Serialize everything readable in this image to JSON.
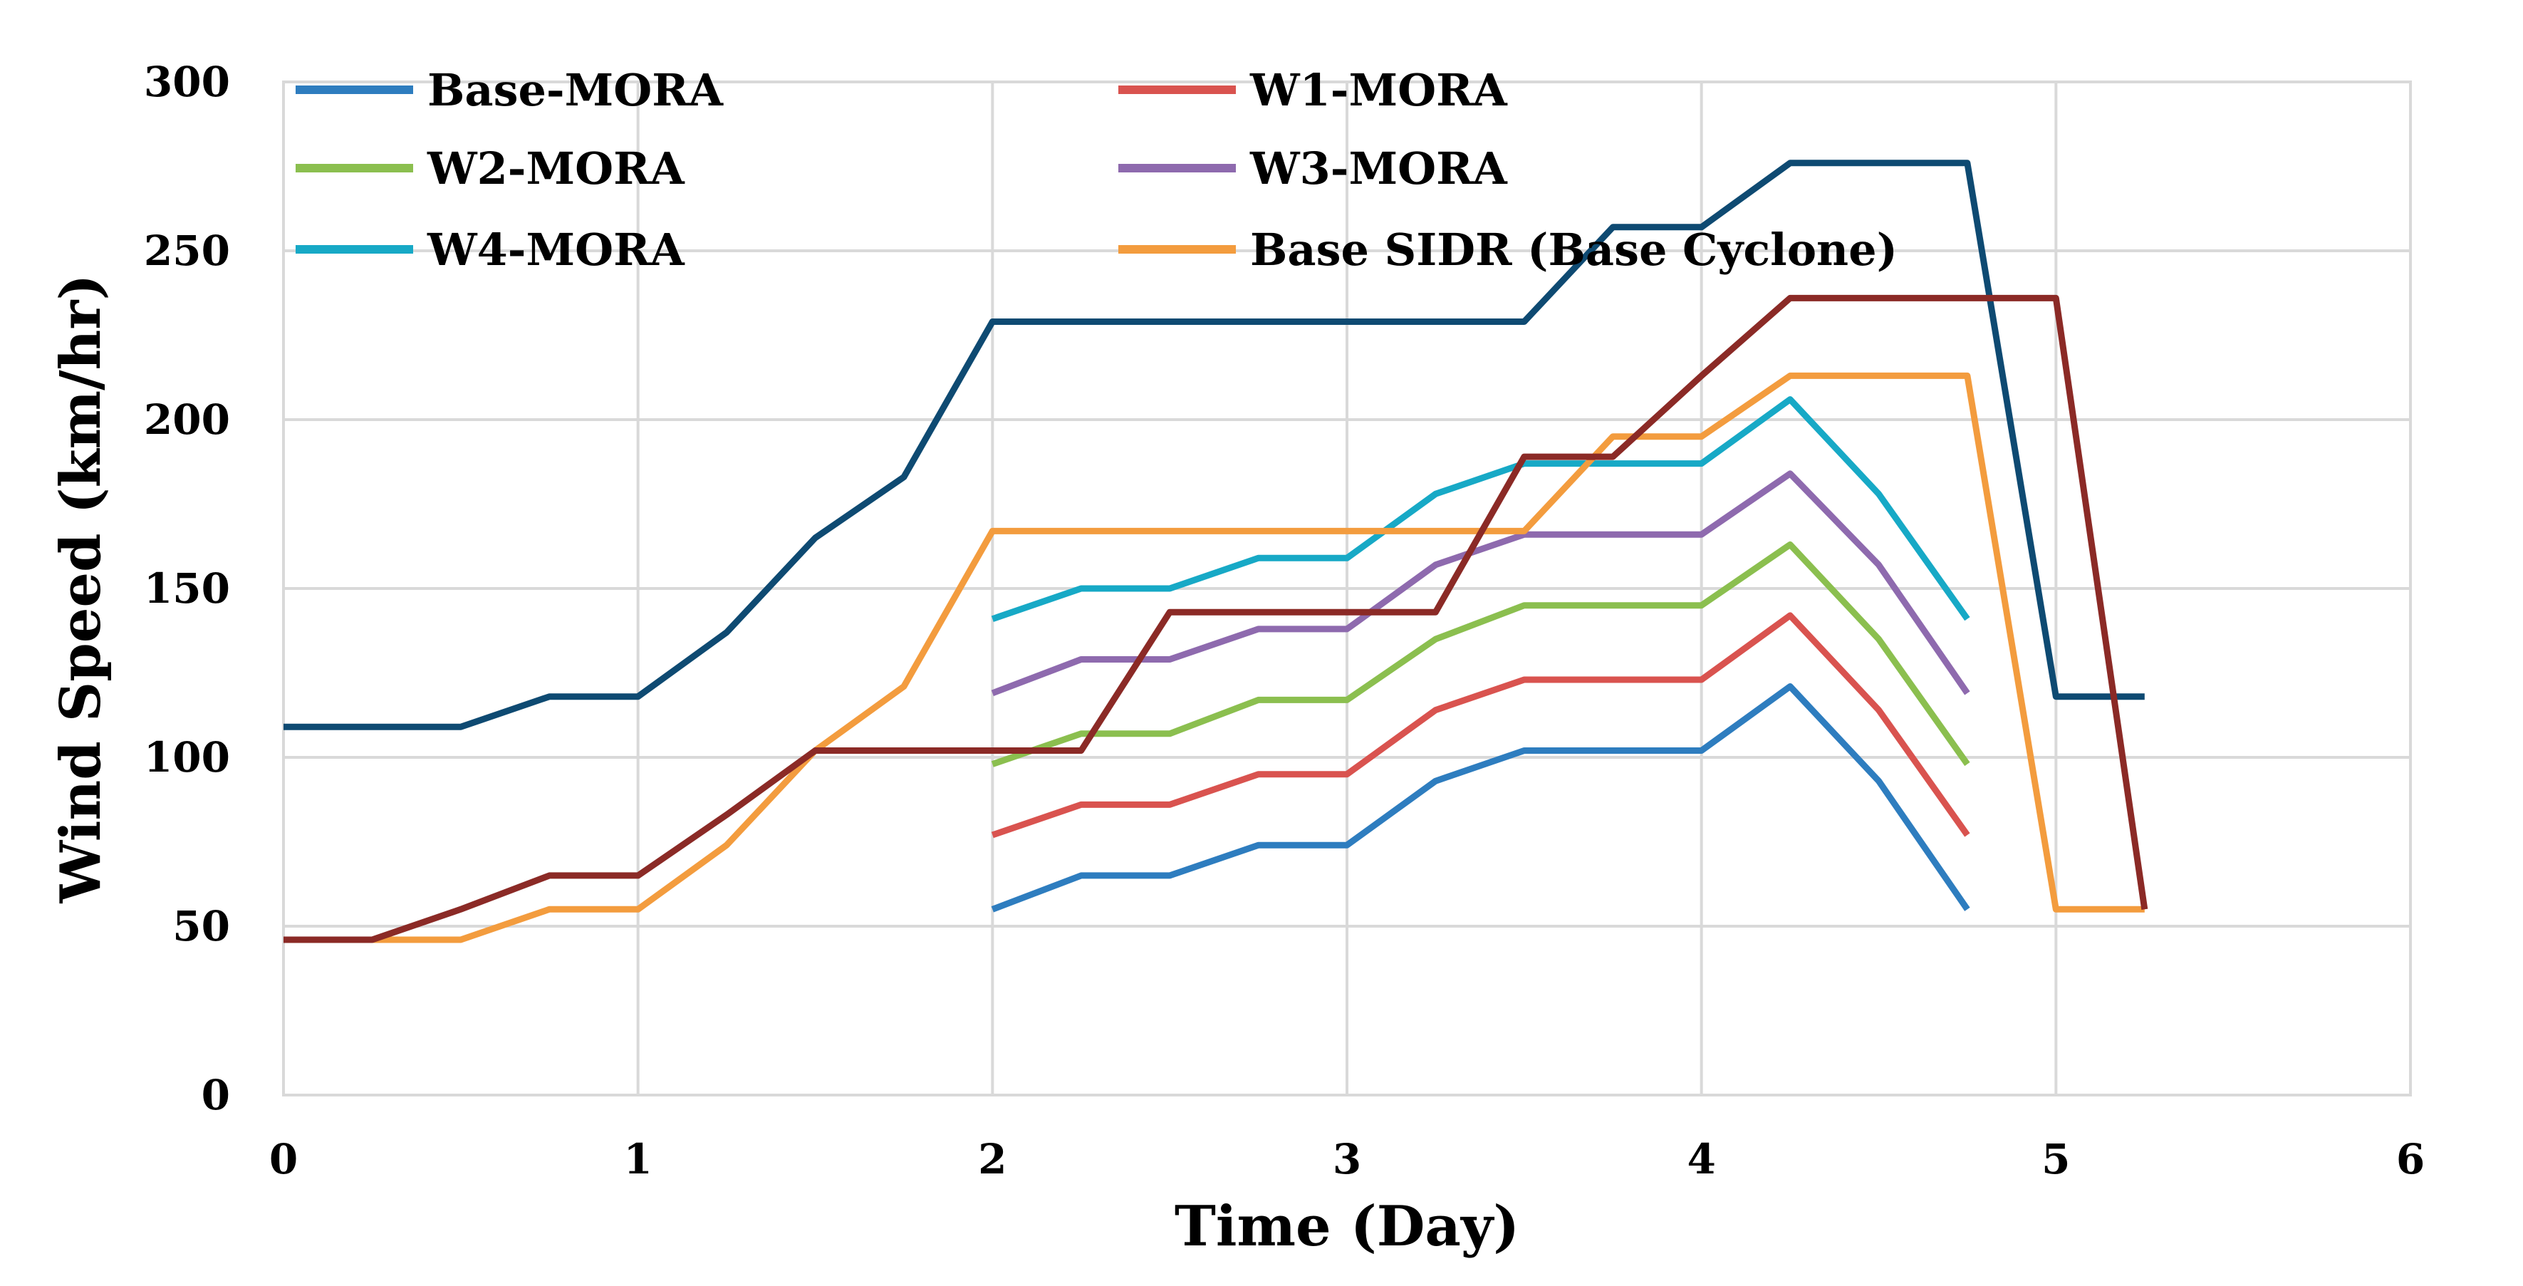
{
  "chart_data": {
    "type": "line",
    "title": "",
    "xlabel": "Time (Day)",
    "ylabel": "Wind Speed (km/hr)",
    "xlim": [
      0,
      6
    ],
    "ylim": [
      0,
      300
    ],
    "xticks": [
      0,
      1,
      2,
      3,
      4,
      5,
      6
    ],
    "yticks": [
      0,
      50,
      100,
      150,
      200,
      250,
      300
    ],
    "grid": true,
    "legend_position": "top",
    "legend": [
      {
        "name": "Base-MORA",
        "color": "#2E7DBF"
      },
      {
        "name": "W1-MORA",
        "color": "#D9534F"
      },
      {
        "name": "W2-MORA",
        "color": "#8BBF4F"
      },
      {
        "name": "W3-MORA",
        "color": "#8E6AAE"
      },
      {
        "name": "W4-MORA",
        "color": "#17A9C6"
      },
      {
        "name": "Base SIDR (Base Cyclone)",
        "color": "#F39C3E"
      }
    ],
    "series": [
      {
        "name": "Base-MORA",
        "color": "#2E7DBF",
        "x": [
          2,
          2.25,
          2.5,
          2.75,
          3,
          3.25,
          3.5,
          3.75,
          4,
          4.25,
          4.5,
          4.75
        ],
        "y": [
          55,
          65,
          65,
          74,
          74,
          93,
          102,
          102,
          102,
          121,
          93,
          55
        ]
      },
      {
        "name": "W1-MORA",
        "color": "#D9534F",
        "x": [
          2,
          2.25,
          2.5,
          2.75,
          3,
          3.25,
          3.5,
          3.75,
          4,
          4.25,
          4.5,
          4.75
        ],
        "y": [
          77,
          86,
          86,
          95,
          95,
          114,
          123,
          123,
          123,
          142,
          114,
          77
        ]
      },
      {
        "name": "W2-MORA",
        "color": "#8BBF4F",
        "x": [
          2,
          2.25,
          2.5,
          2.75,
          3,
          3.25,
          3.5,
          3.75,
          4,
          4.25,
          4.5,
          4.75
        ],
        "y": [
          98,
          107,
          107,
          117,
          117,
          135,
          145,
          145,
          145,
          163,
          135,
          98
        ]
      },
      {
        "name": "W3-MORA",
        "color": "#8E6AAE",
        "x": [
          2,
          2.25,
          2.5,
          2.75,
          3,
          3.25,
          3.5,
          3.75,
          4,
          4.25,
          4.5,
          4.75
        ],
        "y": [
          119,
          129,
          129,
          138,
          138,
          157,
          166,
          166,
          166,
          184,
          157,
          119
        ]
      },
      {
        "name": "W4-MORA",
        "color": "#17A9C6",
        "x": [
          2,
          2.25,
          2.5,
          2.75,
          3,
          3.25,
          3.5,
          3.75,
          4,
          4.25,
          4.5,
          4.75
        ],
        "y": [
          141,
          150,
          150,
          159,
          159,
          178,
          187,
          187,
          187,
          206,
          178,
          141
        ]
      },
      {
        "name": "Base SIDR (Base Cyclone)",
        "color": "#F39C3E",
        "x": [
          0,
          0.25,
          0.5,
          0.75,
          1,
          1.25,
          1.5,
          1.75,
          2,
          2.25,
          2.5,
          2.75,
          3,
          3.25,
          3.5,
          3.75,
          4,
          4.25,
          4.5,
          4.75,
          5,
          5.25
        ],
        "y": [
          46,
          46,
          46,
          55,
          55,
          74,
          102,
          121,
          167,
          167,
          167,
          167,
          167,
          167,
          167,
          195,
          195,
          213,
          213,
          213,
          55,
          55
        ]
      },
      {
        "name": "",
        "color": "#0E4A72",
        "x": [
          0,
          0.25,
          0.5,
          0.75,
          1,
          1.25,
          1.5,
          1.75,
          2,
          2.25,
          2.5,
          2.75,
          3,
          3.25,
          3.5,
          3.75,
          4,
          4.25,
          4.5,
          4.75,
          5,
          5.25
        ],
        "y": [
          109,
          109,
          109,
          118,
          118,
          137,
          165,
          183,
          229,
          229,
          229,
          229,
          229,
          229,
          229,
          257,
          257,
          276,
          276,
          276,
          118,
          118
        ]
      },
      {
        "name": "",
        "color": "#8B2A26",
        "x": [
          0,
          0.25,
          0.5,
          0.75,
          1,
          1.25,
          1.5,
          1.75,
          2,
          2.25,
          2.5,
          2.75,
          3,
          3.25,
          3.5,
          3.75,
          4,
          4.25,
          4.5,
          4.75,
          5,
          5.25
        ],
        "y": [
          46,
          46,
          55,
          65,
          65,
          83,
          102,
          102,
          102,
          102,
          143,
          143,
          143,
          143,
          189,
          189,
          213,
          236,
          236,
          236,
          236,
          55
        ]
      }
    ]
  }
}
